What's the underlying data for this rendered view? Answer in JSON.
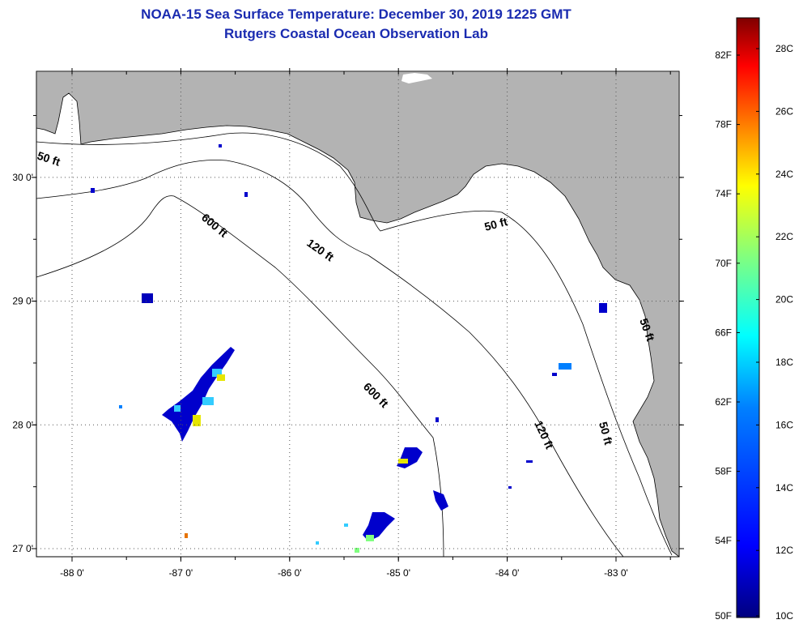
{
  "title_line1": "NOAA-15 Sea Surface Temperature:  December 30, 2019 1225 GMT",
  "title_line2": "Rutgers Coastal Ocean Observation Lab",
  "lon_ticks": [
    {
      "value": -88,
      "label": "-88 0'"
    },
    {
      "value": -87,
      "label": "-87 0'"
    },
    {
      "value": -86,
      "label": "-86 0'"
    },
    {
      "value": -85,
      "label": "-85 0'"
    },
    {
      "value": -84,
      "label": "-84 0'"
    },
    {
      "value": -83,
      "label": "-83 0'"
    }
  ],
  "lat_ticks": [
    {
      "value": 30,
      "label": "30 0'"
    },
    {
      "value": 29,
      "label": "29 0'"
    },
    {
      "value": 28,
      "label": "28 0'"
    },
    {
      "value": 27,
      "label": "27 0'"
    }
  ],
  "contours": [
    {
      "label": "50 ft"
    },
    {
      "label": "120 ft"
    },
    {
      "label": "600 ft"
    },
    {
      "label": "50 ft"
    },
    {
      "label": "600 ft"
    },
    {
      "label": "120 ft"
    },
    {
      "label": "50 ft"
    },
    {
      "label": "50 ft"
    }
  ],
  "colorbar": {
    "fahrenheit_labels": [
      "82F",
      "78F",
      "74F",
      "70F",
      "66F",
      "62F",
      "58F",
      "54F",
      "50F"
    ],
    "celsius_labels": [
      "28C",
      "26C",
      "24C",
      "22C",
      "20C",
      "18C",
      "16C",
      "14C",
      "12C",
      "10C"
    ],
    "colors": [
      "#7f0000",
      "#ff0000",
      "#ff8000",
      "#ffff00",
      "#80ff80",
      "#00ffff",
      "#0080ff",
      "#0000ff",
      "#00007f"
    ]
  },
  "colors": {
    "land": "#b3b3b3",
    "water": "#ffffff",
    "title": "#1a2bb0"
  }
}
